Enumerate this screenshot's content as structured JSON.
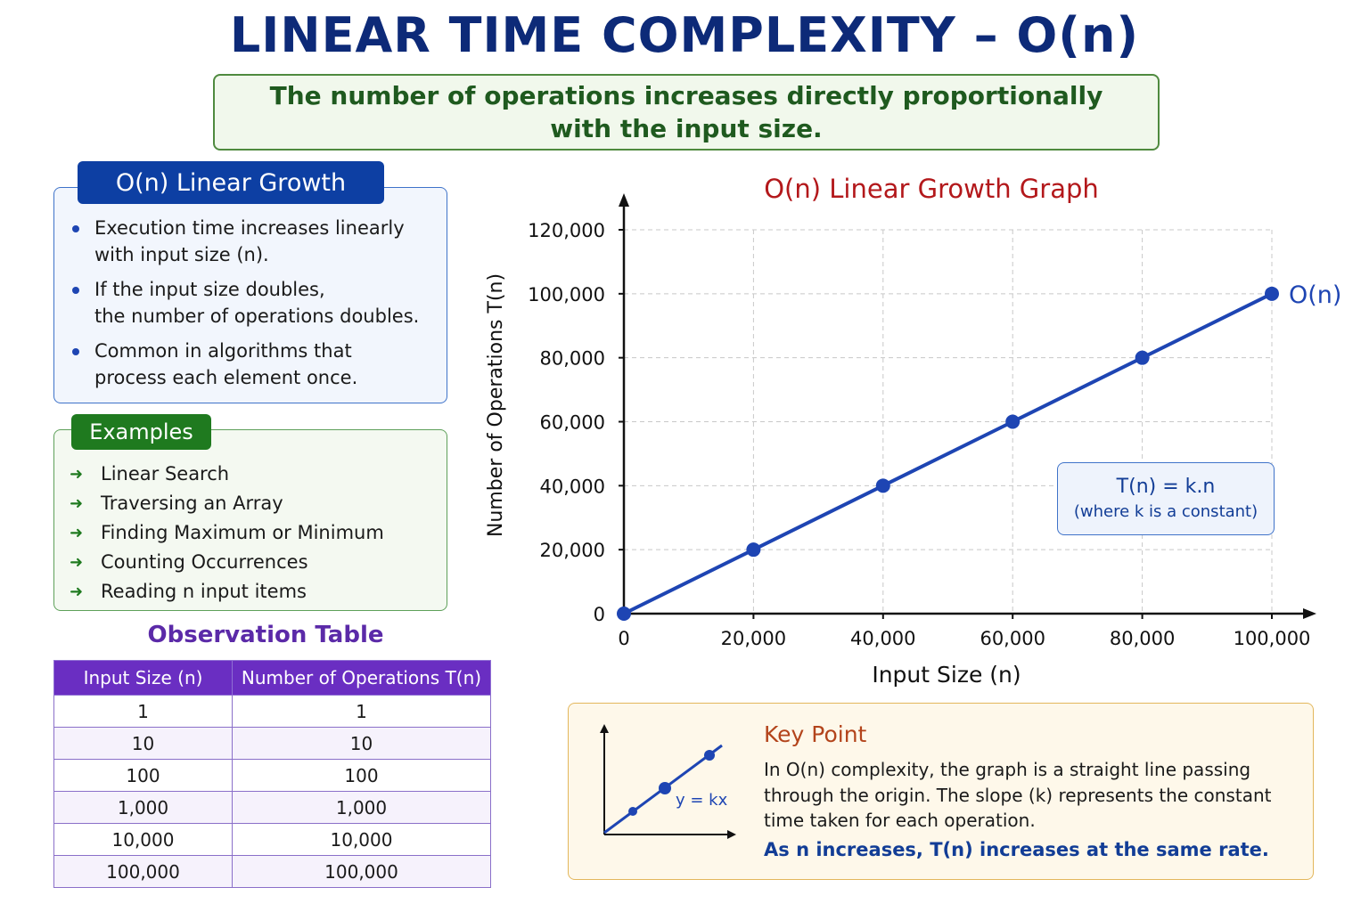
{
  "title": "LINEAR TIME COMPLEXITY – O(n)",
  "subtitle": {
    "line1": "The number of operations increases directly proportionally",
    "line2": "with the input size."
  },
  "growth_panel": {
    "header": "O(n) Linear Growth",
    "bullets": [
      {
        "line1": "Execution time increases linearly",
        "line2": "with input size (n)."
      },
      {
        "line1": "If the input size doubles,",
        "line2": "the number of operations doubles."
      },
      {
        "line1": "Common in algorithms that",
        "line2": "process each element once."
      }
    ]
  },
  "examples": {
    "header": "Examples",
    "items": [
      "Linear Search",
      "Traversing an Array",
      "Finding Maximum or Minimum",
      "Counting Occurrences",
      "Reading n input items"
    ]
  },
  "observation_table": {
    "title": "Observation Table",
    "headers": [
      "Input Size (n)",
      "Number of Operations T(n)"
    ],
    "rows": [
      [
        "1",
        "1"
      ],
      [
        "10",
        "10"
      ],
      [
        "100",
        "100"
      ],
      [
        "1,000",
        "1,000"
      ],
      [
        "10,000",
        "10,000"
      ],
      [
        "100,000",
        "100,000"
      ]
    ]
  },
  "chart_data": {
    "type": "line",
    "title": "O(n) Linear Growth Graph",
    "xlabel": "Input Size (n)",
    "ylabel": "Number of Operations T(n)",
    "xlim": [
      0,
      100000
    ],
    "ylim": [
      0,
      120000
    ],
    "x_ticks": [
      "0",
      "20,000",
      "40,000",
      "60,000",
      "80,000",
      "100,000"
    ],
    "y_ticks": [
      "0",
      "20,000",
      "40,000",
      "60,000",
      "80,000",
      "100,000",
      "120,000"
    ],
    "grid": true,
    "series": [
      {
        "name": "O(n)",
        "color": "#1e45b3",
        "x": [
          0,
          20000,
          40000,
          60000,
          80000,
          100000
        ],
        "y": [
          0,
          20000,
          40000,
          60000,
          80000,
          100000
        ]
      }
    ],
    "annotation": {
      "formula": "T(n) = k.n",
      "note": "(where k is a constant)"
    }
  },
  "key_point": {
    "title": "Key Point",
    "text": "In O(n) complexity, the graph is a straight line passing through the origin. The slope (k) represents the constant time taken for each operation.",
    "emphasis": "As n increases, T(n) increases at the same rate.",
    "mini_label": "y = kx"
  },
  "colors": {
    "title": "#0d2a78",
    "line": "#1e45b3",
    "chart_title": "#b3181b",
    "table_header": "#6a2ec2",
    "examples_header": "#1f7a1f"
  }
}
